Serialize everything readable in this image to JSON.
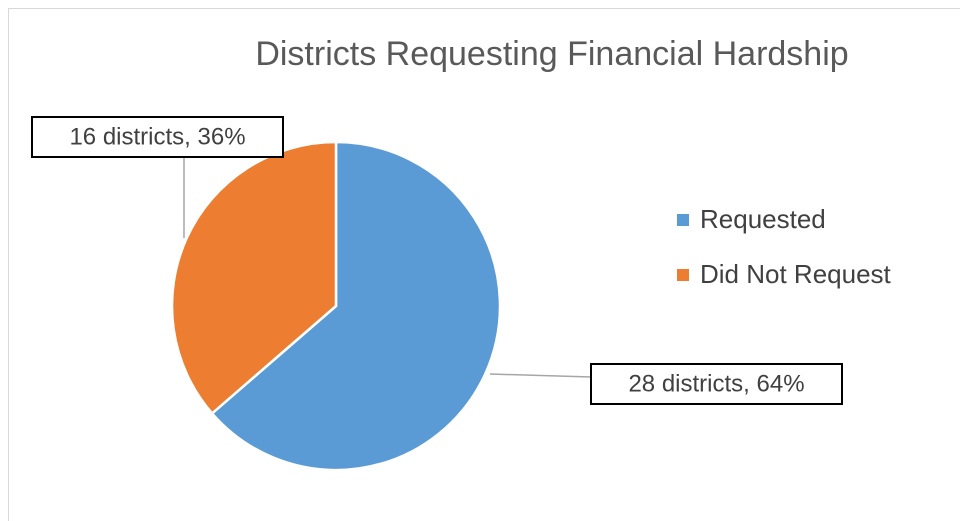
{
  "chart_data": {
    "type": "pie",
    "title": "Districts Requesting Financial Hardship",
    "categories": [
      "Requested",
      "Did Not Request"
    ],
    "values": [
      28,
      16
    ],
    "value_labels": [
      "28 districts, 64%",
      "16 districts, 36%"
    ],
    "colors": [
      "#5b9bd5",
      "#ed7d31"
    ],
    "legend": "right"
  }
}
